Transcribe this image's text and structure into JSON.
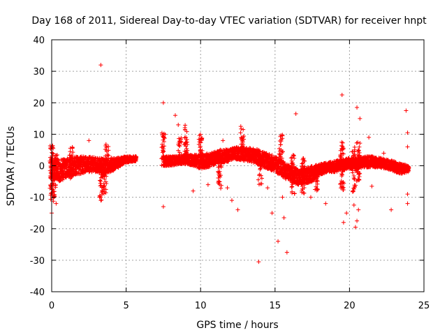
{
  "chart_data": {
    "type": "scatter",
    "title": "Day 168 of 2011, Sidereal Day-to-day VTEC variation (SDTVAR) for receiver hnpt",
    "xlabel": "GPS time / hours",
    "ylabel": "SDTVAR / TECUs",
    "xlim": [
      0,
      25
    ],
    "ylim": [
      -40,
      40
    ],
    "x_ticks": [
      "0",
      "5",
      "10",
      "15",
      "20",
      "25"
    ],
    "y_ticks": [
      "40",
      "30",
      "20",
      "10",
      "0",
      "-10",
      "-20",
      "-30",
      "-40"
    ],
    "grid": true,
    "marker": "+",
    "color": "#ff0000",
    "dense_band": [
      {
        "x": 0.0,
        "low": -4,
        "high": 2
      },
      {
        "x": 0.5,
        "low": -5,
        "high": 2
      },
      {
        "x": 1.0,
        "low": -4,
        "high": 2.5
      },
      {
        "x": 1.5,
        "low": -3,
        "high": 3
      },
      {
        "x": 2.0,
        "low": -2.5,
        "high": 3
      },
      {
        "x": 2.5,
        "low": -2,
        "high": 3
      },
      {
        "x": 3.0,
        "low": -2,
        "high": 2.5
      },
      {
        "x": 3.5,
        "low": -3,
        "high": 2.5
      },
      {
        "x": 4.0,
        "low": -2,
        "high": 2.5
      },
      {
        "x": 4.5,
        "low": -0.5,
        "high": 2.5
      },
      {
        "x": 5.0,
        "low": 1,
        "high": 3
      },
      {
        "x": 5.7,
        "low": 1.5,
        "high": 3
      },
      {
        "x": 7.5,
        "low": 0,
        "high": 3
      },
      {
        "x": 8.0,
        "low": 0,
        "high": 3
      },
      {
        "x": 8.5,
        "low": 0.5,
        "high": 3
      },
      {
        "x": 9.0,
        "low": 0.5,
        "high": 3.5
      },
      {
        "x": 9.5,
        "low": 0,
        "high": 3.5
      },
      {
        "x": 10.0,
        "low": -1,
        "high": 3.5
      },
      {
        "x": 10.5,
        "low": -0.5,
        "high": 4
      },
      {
        "x": 11.0,
        "low": 0.5,
        "high": 4.5
      },
      {
        "x": 11.5,
        "low": 1,
        "high": 5
      },
      {
        "x": 12.0,
        "low": 1.5,
        "high": 5.5
      },
      {
        "x": 12.5,
        "low": 2,
        "high": 6
      },
      {
        "x": 13.0,
        "low": 1.5,
        "high": 6
      },
      {
        "x": 13.5,
        "low": 1,
        "high": 5.5
      },
      {
        "x": 14.0,
        "low": 0,
        "high": 5
      },
      {
        "x": 14.5,
        "low": -1,
        "high": 4
      },
      {
        "x": 15.0,
        "low": -2,
        "high": 3
      },
      {
        "x": 15.5,
        "low": -3.5,
        "high": 1.5
      },
      {
        "x": 16.0,
        "low": -5,
        "high": 0
      },
      {
        "x": 16.5,
        "low": -6,
        "high": -1
      },
      {
        "x": 17.0,
        "low": -6,
        "high": -1
      },
      {
        "x": 17.5,
        "low": -5,
        "high": 0
      },
      {
        "x": 18.0,
        "low": -3,
        "high": 0.5
      },
      {
        "x": 18.5,
        "low": -2,
        "high": 1
      },
      {
        "x": 19.0,
        "low": -2,
        "high": 1.5
      },
      {
        "x": 19.5,
        "low": -1.5,
        "high": 2
      },
      {
        "x": 20.0,
        "low": -1,
        "high": 2.5
      },
      {
        "x": 20.5,
        "low": -1,
        "high": 2.5
      },
      {
        "x": 21.0,
        "low": -0.5,
        "high": 3
      },
      {
        "x": 21.5,
        "low": -0.5,
        "high": 3
      },
      {
        "x": 22.0,
        "low": -0.5,
        "high": 2.5
      },
      {
        "x": 22.5,
        "low": -1,
        "high": 2
      },
      {
        "x": 23.0,
        "low": -2,
        "high": 1.5
      },
      {
        "x": 23.5,
        "low": -2.5,
        "high": 0.5
      },
      {
        "x": 24.0,
        "low": -2,
        "high": 0
      }
    ],
    "spikes": [
      {
        "x": 0.0,
        "low": -12,
        "high": 7
      },
      {
        "x": 0.15,
        "low": -10,
        "high": 3
      },
      {
        "x": 0.3,
        "low": -6,
        "high": 4
      },
      {
        "x": 1.3,
        "low": -4,
        "high": 6
      },
      {
        "x": 3.3,
        "low": -11,
        "high": 0
      },
      {
        "x": 3.55,
        "low": -9,
        "high": 1
      },
      {
        "x": 3.7,
        "low": 0,
        "high": 7
      },
      {
        "x": 7.5,
        "low": 0,
        "high": 11
      },
      {
        "x": 8.6,
        "low": 3,
        "high": 9
      },
      {
        "x": 9.0,
        "low": 3,
        "high": 13
      },
      {
        "x": 10.0,
        "low": 3,
        "high": 11
      },
      {
        "x": 11.3,
        "low": -8,
        "high": 6
      },
      {
        "x": 12.8,
        "low": 4,
        "high": 12
      },
      {
        "x": 14.0,
        "low": -6,
        "high": 4
      },
      {
        "x": 15.4,
        "low": 2,
        "high": 10
      },
      {
        "x": 16.2,
        "low": -9,
        "high": 4
      },
      {
        "x": 16.9,
        "low": -9,
        "high": 4
      },
      {
        "x": 17.8,
        "low": -8,
        "high": 0
      },
      {
        "x": 19.5,
        "low": -8,
        "high": 8
      },
      {
        "x": 20.3,
        "low": -9,
        "high": 6
      },
      {
        "x": 20.6,
        "low": -5,
        "high": 8
      }
    ],
    "outliers": [
      [
        3.3,
        32
      ],
      [
        0.0,
        -15
      ],
      [
        0.05,
        4
      ],
      [
        0.3,
        -12
      ],
      [
        2.5,
        8
      ],
      [
        2.5,
        -1
      ],
      [
        3.3,
        -11
      ],
      [
        7.5,
        20
      ],
      [
        7.5,
        -13
      ],
      [
        8.3,
        16
      ],
      [
        8.5,
        13
      ],
      [
        9.5,
        -8
      ],
      [
        10.5,
        -6
      ],
      [
        11.5,
        8
      ],
      [
        11.8,
        -7
      ],
      [
        12.1,
        -11
      ],
      [
        12.5,
        -14
      ],
      [
        12.7,
        12.5
      ],
      [
        13.9,
        -30.5
      ],
      [
        14.5,
        -7
      ],
      [
        14.8,
        -15
      ],
      [
        15.2,
        -24
      ],
      [
        15.6,
        -16.5
      ],
      [
        15.8,
        -27.5
      ],
      [
        15.5,
        -10
      ],
      [
        16.4,
        16.5
      ],
      [
        16.8,
        -8
      ],
      [
        17.4,
        -10
      ],
      [
        18.4,
        -12
      ],
      [
        19.5,
        22.5
      ],
      [
        19.6,
        -18
      ],
      [
        19.8,
        -15
      ],
      [
        20.3,
        -12.5
      ],
      [
        20.4,
        -19.5
      ],
      [
        20.5,
        -17.5
      ],
      [
        20.6,
        -14
      ],
      [
        20.5,
        18.5
      ],
      [
        20.7,
        15
      ],
      [
        21.3,
        9
      ],
      [
        21.5,
        -6.5
      ],
      [
        22.3,
        4
      ],
      [
        22.8,
        -14
      ],
      [
        23.8,
        17.5
      ],
      [
        23.9,
        10.5
      ],
      [
        23.9,
        6
      ],
      [
        23.9,
        -9
      ],
      [
        23.9,
        -12
      ]
    ]
  }
}
